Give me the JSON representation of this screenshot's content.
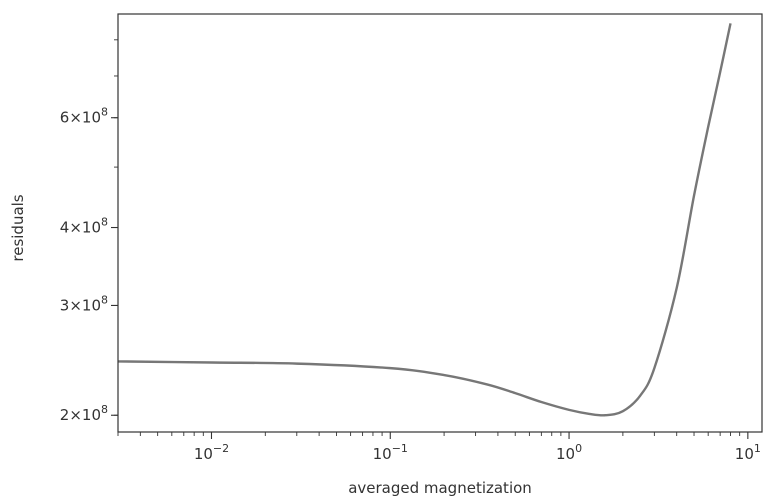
{
  "chart_data": {
    "type": "line",
    "xlabel": "averaged magnetization",
    "ylabel": "residuals",
    "xscale": "log",
    "yscale": "log",
    "xlim": [
      0.003,
      12
    ],
    "ylim": [
      188000000.0,
      880000000.0
    ],
    "grid": false,
    "xticks": [
      {
        "value": 0.01,
        "mantissa": "10",
        "exp": "−2"
      },
      {
        "value": 0.1,
        "mantissa": "10",
        "exp": "−1"
      },
      {
        "value": 1,
        "mantissa": "10",
        "exp": "0"
      },
      {
        "value": 10,
        "mantissa": "10",
        "exp": "1"
      }
    ],
    "yticks": [
      {
        "value": 200000000.0,
        "coef": "2",
        "exp": "8"
      },
      {
        "value": 300000000.0,
        "coef": "3",
        "exp": "8"
      },
      {
        "value": 400000000.0,
        "coef": "4",
        "exp": "8"
      },
      {
        "value": 600000000.0,
        "coef": "6",
        "exp": "8"
      }
    ],
    "series": [
      {
        "color": "#777777",
        "x": [
          0.003,
          0.01,
          0.03,
          0.1,
          0.2,
          0.35,
          0.5,
          0.7,
          1.0,
          1.3,
          1.6,
          2.0,
          2.5,
          3.0,
          4.0,
          5.0,
          6.0,
          7.0,
          8.0
        ],
        "y": [
          244000000.0,
          243000000.0,
          242000000.0,
          238000000.0,
          232000000.0,
          224000000.0,
          217000000.0,
          210000000.0,
          204000000.0,
          201000000.0,
          200000000.0,
          203000000.0,
          215000000.0,
          238000000.0,
          320000000.0,
          450000000.0,
          580000000.0,
          710000000.0,
          850000000.0
        ]
      }
    ]
  }
}
